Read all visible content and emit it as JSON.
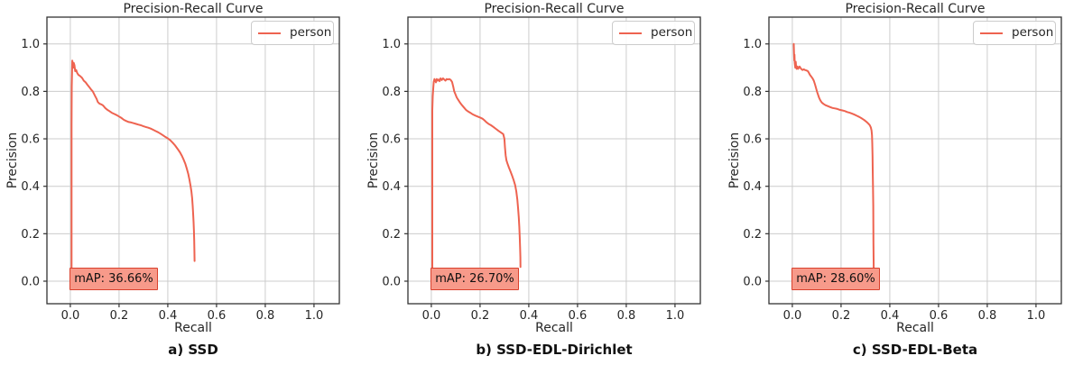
{
  "colors": {
    "curve": "#ee6350",
    "grid": "#cccccc",
    "axis": "#333333",
    "text": "#262626",
    "map_fill": "#f79a8a",
    "map_border": "#d9402c",
    "background": "#ffffff"
  },
  "chart_data": [
    {
      "type": "line",
      "title": "Precision-Recall Curve",
      "xlabel": "Recall",
      "ylabel": "Precision",
      "caption": "a) SSD",
      "legend_label": "person",
      "legend_position": "upper right",
      "map_label": "mAP: 36.66%",
      "map_value_percent": 36.66,
      "grid": true,
      "xlim": [
        -0.096,
        1.104
      ],
      "ylim": [
        -0.095,
        1.113
      ],
      "xticks": [
        "0.0",
        "0.2",
        "0.4",
        "0.6",
        "0.8",
        "1.0"
      ],
      "yticks": [
        "0.0",
        "0.2",
        "0.4",
        "0.6",
        "0.8",
        "1.0"
      ],
      "series": [
        {
          "name": "person",
          "points": [
            [
              0.005,
              0.05
            ],
            [
              0.005,
              0.66
            ],
            [
              0.006,
              0.82
            ],
            [
              0.008,
              0.93
            ],
            [
              0.01,
              0.915
            ],
            [
              0.012,
              0.9
            ],
            [
              0.014,
              0.92
            ],
            [
              0.017,
              0.91
            ],
            [
              0.02,
              0.885
            ],
            [
              0.024,
              0.89
            ],
            [
              0.028,
              0.878
            ],
            [
              0.033,
              0.87
            ],
            [
              0.04,
              0.865
            ],
            [
              0.048,
              0.857
            ],
            [
              0.055,
              0.845
            ],
            [
              0.063,
              0.838
            ],
            [
              0.07,
              0.828
            ],
            [
              0.078,
              0.818
            ],
            [
              0.085,
              0.808
            ],
            [
              0.092,
              0.8
            ],
            [
              0.098,
              0.788
            ],
            [
              0.103,
              0.778
            ],
            [
              0.108,
              0.768
            ],
            [
              0.113,
              0.755
            ],
            [
              0.12,
              0.748
            ],
            [
              0.128,
              0.745
            ],
            [
              0.135,
              0.74
            ],
            [
              0.143,
              0.73
            ],
            [
              0.152,
              0.722
            ],
            [
              0.16,
              0.717
            ],
            [
              0.17,
              0.71
            ],
            [
              0.18,
              0.705
            ],
            [
              0.19,
              0.7
            ],
            [
              0.2,
              0.694
            ],
            [
              0.21,
              0.688
            ],
            [
              0.22,
              0.68
            ],
            [
              0.23,
              0.675
            ],
            [
              0.24,
              0.671
            ],
            [
              0.25,
              0.669
            ],
            [
              0.26,
              0.666
            ],
            [
              0.27,
              0.663
            ],
            [
              0.28,
              0.66
            ],
            [
              0.29,
              0.657
            ],
            [
              0.3,
              0.653
            ],
            [
              0.31,
              0.65
            ],
            [
              0.32,
              0.647
            ],
            [
              0.33,
              0.643
            ],
            [
              0.34,
              0.638
            ],
            [
              0.35,
              0.633
            ],
            [
              0.36,
              0.628
            ],
            [
              0.37,
              0.622
            ],
            [
              0.38,
              0.615
            ],
            [
              0.39,
              0.608
            ],
            [
              0.4,
              0.602
            ],
            [
              0.41,
              0.594
            ],
            [
              0.42,
              0.584
            ],
            [
              0.43,
              0.572
            ],
            [
              0.44,
              0.558
            ],
            [
              0.45,
              0.543
            ],
            [
              0.458,
              0.528
            ],
            [
              0.465,
              0.512
            ],
            [
              0.472,
              0.494
            ],
            [
              0.478,
              0.474
            ],
            [
              0.484,
              0.452
            ],
            [
              0.489,
              0.428
            ],
            [
              0.493,
              0.405
            ],
            [
              0.497,
              0.378
            ],
            [
              0.5,
              0.35
            ],
            [
              0.502,
              0.318
            ],
            [
              0.504,
              0.285
            ],
            [
              0.506,
              0.248
            ],
            [
              0.5075,
              0.21
            ],
            [
              0.5085,
              0.17
            ],
            [
              0.5092,
              0.13
            ],
            [
              0.51,
              0.085
            ]
          ]
        }
      ]
    },
    {
      "type": "line",
      "title": "Precision-Recall Curve",
      "xlabel": "Recall",
      "ylabel": "Precision",
      "caption": "b) SSD-EDL-Dirichlet",
      "legend_label": "person",
      "legend_position": "upper right",
      "map_label": "mAP: 26.70%",
      "map_value_percent": 26.7,
      "grid": true,
      "xlim": [
        -0.096,
        1.104
      ],
      "ylim": [
        -0.095,
        1.113
      ],
      "xticks": [
        "0.0",
        "0.2",
        "0.4",
        "0.6",
        "0.8",
        "1.0"
      ],
      "yticks": [
        "0.0",
        "0.2",
        "0.4",
        "0.6",
        "0.8",
        "1.0"
      ],
      "series": [
        {
          "name": "person",
          "points": [
            [
              0.004,
              0.05
            ],
            [
              0.004,
              0.72
            ],
            [
              0.006,
              0.78
            ],
            [
              0.008,
              0.815
            ],
            [
              0.01,
              0.84
            ],
            [
              0.013,
              0.852
            ],
            [
              0.016,
              0.845
            ],
            [
              0.019,
              0.838
            ],
            [
              0.022,
              0.852
            ],
            [
              0.026,
              0.845
            ],
            [
              0.03,
              0.85
            ],
            [
              0.034,
              0.843
            ],
            [
              0.038,
              0.855
            ],
            [
              0.043,
              0.848
            ],
            [
              0.048,
              0.855
            ],
            [
              0.053,
              0.85
            ],
            [
              0.058,
              0.845
            ],
            [
              0.063,
              0.852
            ],
            [
              0.068,
              0.85
            ],
            [
              0.074,
              0.852
            ],
            [
              0.08,
              0.848
            ],
            [
              0.085,
              0.84
            ],
            [
              0.09,
              0.82
            ],
            [
              0.094,
              0.8
            ],
            [
              0.098,
              0.79
            ],
            [
              0.104,
              0.775
            ],
            [
              0.11,
              0.765
            ],
            [
              0.118,
              0.752
            ],
            [
              0.126,
              0.742
            ],
            [
              0.134,
              0.732
            ],
            [
              0.142,
              0.722
            ],
            [
              0.15,
              0.716
            ],
            [
              0.16,
              0.71
            ],
            [
              0.17,
              0.703
            ],
            [
              0.18,
              0.698
            ],
            [
              0.19,
              0.694
            ],
            [
              0.2,
              0.69
            ],
            [
              0.21,
              0.685
            ],
            [
              0.218,
              0.678
            ],
            [
              0.226,
              0.67
            ],
            [
              0.235,
              0.663
            ],
            [
              0.245,
              0.657
            ],
            [
              0.255,
              0.65
            ],
            [
              0.265,
              0.642
            ],
            [
              0.275,
              0.634
            ],
            [
              0.285,
              0.627
            ],
            [
              0.295,
              0.62
            ],
            [
              0.3,
              0.6
            ],
            [
              0.302,
              0.565
            ],
            [
              0.305,
              0.53
            ],
            [
              0.308,
              0.51
            ],
            [
              0.312,
              0.497
            ],
            [
              0.318,
              0.48
            ],
            [
              0.325,
              0.462
            ],
            [
              0.332,
              0.443
            ],
            [
              0.338,
              0.425
            ],
            [
              0.344,
              0.405
            ],
            [
              0.349,
              0.378
            ],
            [
              0.353,
              0.345
            ],
            [
              0.356,
              0.31
            ],
            [
              0.359,
              0.27
            ],
            [
              0.361,
              0.23
            ],
            [
              0.363,
              0.185
            ],
            [
              0.3645,
              0.14
            ],
            [
              0.3655,
              0.1
            ],
            [
              0.366,
              0.06
            ]
          ]
        }
      ]
    },
    {
      "type": "line",
      "title": "Precision-Recall Curve",
      "xlabel": "Recall",
      "ylabel": "Precision",
      "caption": "c) SSD-EDL-Beta",
      "legend_label": "person",
      "legend_position": "upper right",
      "map_label": "mAP: 28.60%",
      "map_value_percent": 28.6,
      "grid": true,
      "xlim": [
        -0.096,
        1.104
      ],
      "ylim": [
        -0.095,
        1.113
      ],
      "xticks": [
        "0.0",
        "0.2",
        "0.4",
        "0.6",
        "0.8",
        "1.0"
      ],
      "yticks": [
        "0.0",
        "0.2",
        "0.4",
        "0.6",
        "0.8",
        "1.0"
      ],
      "series": [
        {
          "name": "person",
          "points": [
            [
              0.006,
              1.0
            ],
            [
              0.007,
              0.96
            ],
            [
              0.008,
              0.93
            ],
            [
              0.009,
              0.955
            ],
            [
              0.01,
              0.92
            ],
            [
              0.012,
              0.9
            ],
            [
              0.014,
              0.925
            ],
            [
              0.016,
              0.9
            ],
            [
              0.018,
              0.895
            ],
            [
              0.021,
              0.905
            ],
            [
              0.024,
              0.895
            ],
            [
              0.027,
              0.9
            ],
            [
              0.03,
              0.905
            ],
            [
              0.034,
              0.898
            ],
            [
              0.038,
              0.893
            ],
            [
              0.042,
              0.89
            ],
            [
              0.047,
              0.893
            ],
            [
              0.052,
              0.89
            ],
            [
              0.058,
              0.888
            ],
            [
              0.064,
              0.885
            ],
            [
              0.068,
              0.878
            ],
            [
              0.072,
              0.87
            ],
            [
              0.078,
              0.862
            ],
            [
              0.083,
              0.855
            ],
            [
              0.088,
              0.845
            ],
            [
              0.093,
              0.83
            ],
            [
              0.097,
              0.815
            ],
            [
              0.101,
              0.8
            ],
            [
              0.106,
              0.785
            ],
            [
              0.11,
              0.773
            ],
            [
              0.115,
              0.762
            ],
            [
              0.121,
              0.753
            ],
            [
              0.128,
              0.747
            ],
            [
              0.136,
              0.742
            ],
            [
              0.145,
              0.738
            ],
            [
              0.155,
              0.734
            ],
            [
              0.165,
              0.73
            ],
            [
              0.175,
              0.728
            ],
            [
              0.185,
              0.726
            ],
            [
              0.195,
              0.722
            ],
            [
              0.205,
              0.72
            ],
            [
              0.215,
              0.717
            ],
            [
              0.225,
              0.713
            ],
            [
              0.235,
              0.71
            ],
            [
              0.245,
              0.706
            ],
            [
              0.255,
              0.702
            ],
            [
              0.265,
              0.697
            ],
            [
              0.275,
              0.692
            ],
            [
              0.285,
              0.686
            ],
            [
              0.295,
              0.679
            ],
            [
              0.305,
              0.671
            ],
            [
              0.312,
              0.664
            ],
            [
              0.318,
              0.657
            ],
            [
              0.322,
              0.648
            ],
            [
              0.325,
              0.635
            ],
            [
              0.327,
              0.615
            ],
            [
              0.328,
              0.58
            ],
            [
              0.329,
              0.53
            ],
            [
              0.33,
              0.47
            ],
            [
              0.331,
              0.4
            ],
            [
              0.332,
              0.32
            ],
            [
              0.3325,
              0.24
            ],
            [
              0.333,
              0.16
            ],
            [
              0.3335,
              0.09
            ],
            [
              0.334,
              0.05
            ]
          ]
        }
      ]
    }
  ]
}
